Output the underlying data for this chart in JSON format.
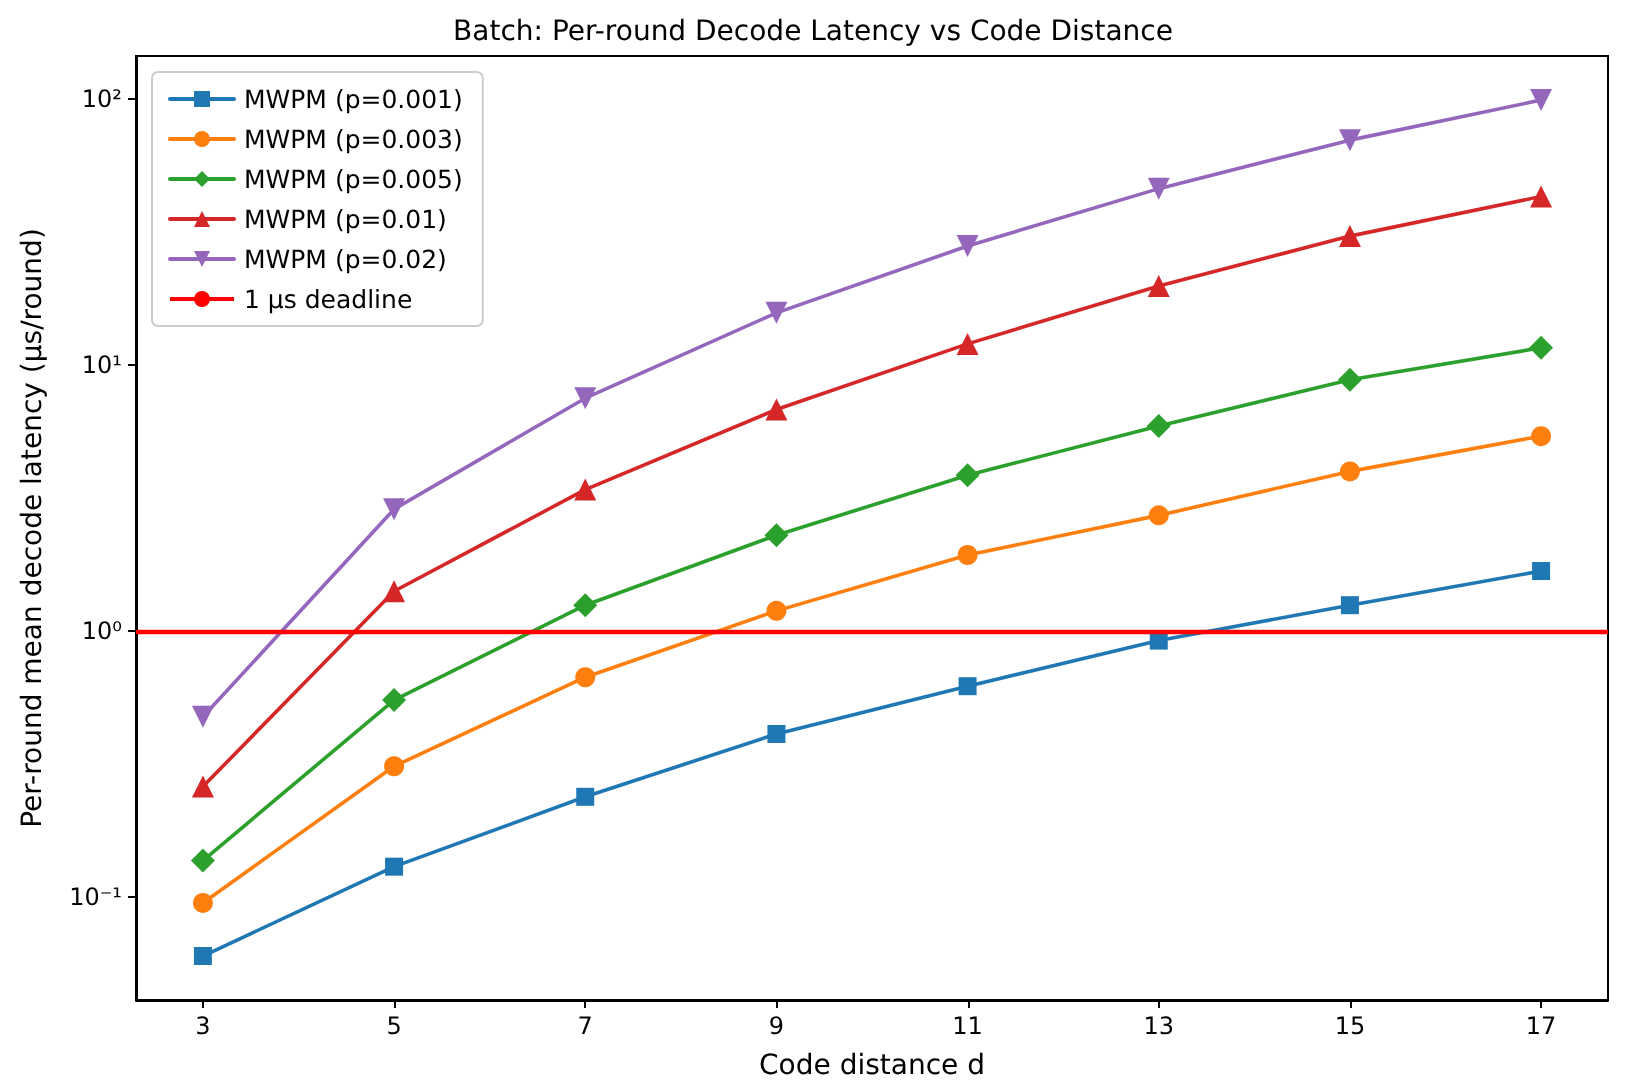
{
  "chart_data": {
    "type": "line",
    "title": "Batch: Per-round Decode Latency vs Code Distance",
    "xlabel": "Code distance d",
    "ylabel": "Per-round mean decode latency (μs/round)",
    "x": [
      3,
      5,
      7,
      9,
      11,
      13,
      15,
      17
    ],
    "series": [
      {
        "name": "MWPM (p=0.001)",
        "color": "#1f77b4",
        "marker": "square",
        "values": [
          0.06,
          0.13,
          0.238,
          0.41,
          0.62,
          0.92,
          1.25,
          1.68
        ]
      },
      {
        "name": "MWPM (p=0.003)",
        "color": "#ff7f0e",
        "marker": "circle",
        "values": [
          0.095,
          0.31,
          0.67,
          1.19,
          1.93,
          2.72,
          3.98,
          5.4
        ]
      },
      {
        "name": "MWPM (p=0.005)",
        "color": "#2ca02c",
        "marker": "diamond",
        "values": [
          0.137,
          0.55,
          1.25,
          2.29,
          3.85,
          5.9,
          8.8,
          11.6
        ]
      },
      {
        "name": "MWPM (p=0.01)",
        "color": "#d62728",
        "marker": "triangle",
        "values": [
          0.26,
          1.41,
          3.4,
          6.8,
          12.0,
          19.8,
          30.5,
          43
        ]
      },
      {
        "name": "MWPM (p=0.02)",
        "color": "#9467bd",
        "marker": "triangle-down",
        "values": [
          0.476,
          2.87,
          7.5,
          15.7,
          28,
          46,
          70,
          99
        ]
      }
    ],
    "ref_lines": [
      {
        "axis": "y",
        "value": 1,
        "label": "1 μs deadline",
        "color": "#ff0000"
      }
    ],
    "log": "y",
    "xlim": [
      2.3,
      17.7
    ],
    "xticks": [
      3,
      5,
      7,
      9,
      11,
      13,
      15,
      17
    ],
    "ylim": [
      0.041,
      145
    ],
    "yticks": [
      {
        "value": 0.1,
        "label": "10⁻¹"
      },
      {
        "value": 1,
        "label": "10⁰"
      },
      {
        "value": 10,
        "label": "10¹"
      },
      {
        "value": 100,
        "label": "10²"
      }
    ],
    "grid": false,
    "legend": "top left",
    "line_style": "solid"
  }
}
